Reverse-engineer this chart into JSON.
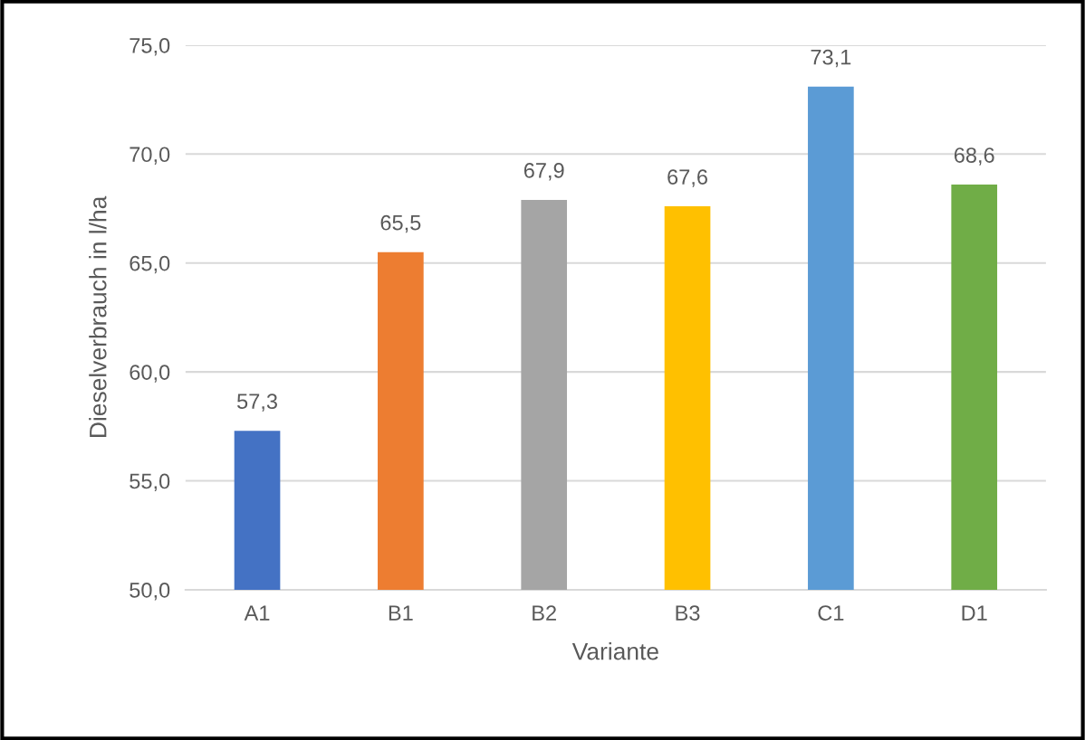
{
  "chart_data": {
    "type": "bar",
    "xlabel": "Variante",
    "ylabel": "Dieselverbrauch in l/ha",
    "categories": [
      "A1",
      "B1",
      "B2",
      "B3",
      "C1",
      "D1"
    ],
    "values": [
      57.3,
      65.5,
      67.9,
      67.6,
      73.1,
      68.6
    ],
    "colors": [
      "#4472c4",
      "#ed7d31",
      "#a5a5a5",
      "#ffc000",
      "#5b9bd5",
      "#70ad47"
    ],
    "value_labels": [
      "57,3",
      "65,5",
      "67,9",
      "67,6",
      "73,1",
      "68,6"
    ],
    "ylim": [
      50,
      75
    ],
    "yticks": [
      {
        "value": 50,
        "label": "50,0"
      },
      {
        "value": 55,
        "label": "55,0"
      },
      {
        "value": 60,
        "label": "60,0"
      },
      {
        "value": 65,
        "label": "65,0"
      },
      {
        "value": 70,
        "label": "70,0"
      },
      {
        "value": 75,
        "label": "75,0"
      }
    ],
    "grid": "y",
    "legend": false
  }
}
